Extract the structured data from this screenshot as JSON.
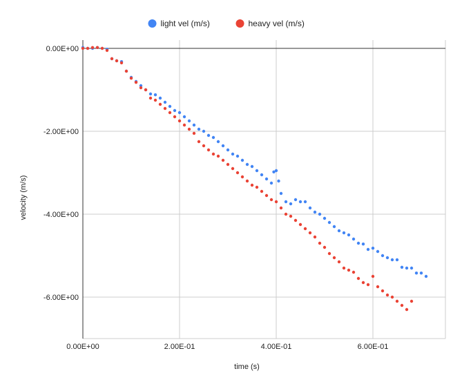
{
  "chart_data": {
    "type": "scatter",
    "title": "",
    "xlabel": "time (s)",
    "ylabel": "velocity (m/s)",
    "xlim": [
      0,
      0.75
    ],
    "ylim": [
      -7,
      0.2
    ],
    "x_ticks": [
      0,
      0.2,
      0.4,
      0.6
    ],
    "x_tick_labels": [
      "0.00E+00",
      "2.00E-01",
      "4.00E-01",
      "6.00E-01"
    ],
    "y_ticks": [
      0,
      -2,
      -4,
      -6
    ],
    "y_tick_labels": [
      "0.00E+00",
      "-2.00E+00",
      "-4.00E+00",
      "-6.00E+00"
    ],
    "grid": true,
    "legend_position": "top",
    "series": [
      {
        "name": "light vel (m/s)",
        "color": "#4285f4",
        "x": [
          0.0,
          0.01,
          0.02,
          0.03,
          0.04,
          0.05,
          0.06,
          0.07,
          0.08,
          0.09,
          0.1,
          0.11,
          0.12,
          0.13,
          0.14,
          0.15,
          0.16,
          0.17,
          0.18,
          0.19,
          0.2,
          0.21,
          0.22,
          0.23,
          0.24,
          0.25,
          0.26,
          0.27,
          0.28,
          0.29,
          0.3,
          0.31,
          0.32,
          0.33,
          0.34,
          0.35,
          0.36,
          0.37,
          0.38,
          0.39,
          0.395,
          0.4,
          0.405,
          0.41,
          0.42,
          0.43,
          0.44,
          0.45,
          0.46,
          0.47,
          0.48,
          0.49,
          0.5,
          0.51,
          0.52,
          0.53,
          0.54,
          0.55,
          0.56,
          0.57,
          0.58,
          0.59,
          0.6,
          0.61,
          0.62,
          0.63,
          0.64,
          0.65,
          0.66,
          0.67,
          0.68,
          0.69,
          0.7,
          0.71
        ],
        "y": [
          0.02,
          0.0,
          0.0,
          0.02,
          0.0,
          -0.02,
          -0.25,
          -0.3,
          -0.32,
          -0.55,
          -0.7,
          -0.8,
          -0.9,
          -1.0,
          -1.1,
          -1.12,
          -1.2,
          -1.3,
          -1.4,
          -1.5,
          -1.55,
          -1.65,
          -1.75,
          -1.85,
          -1.95,
          -2.0,
          -2.1,
          -2.15,
          -2.25,
          -2.35,
          -2.45,
          -2.55,
          -2.6,
          -2.7,
          -2.8,
          -2.85,
          -2.95,
          -3.05,
          -3.15,
          -3.25,
          -2.98,
          -2.95,
          -3.2,
          -3.5,
          -3.7,
          -3.75,
          -3.65,
          -3.7,
          -3.7,
          -3.85,
          -3.95,
          -4.0,
          -4.1,
          -4.2,
          -4.3,
          -4.4,
          -4.45,
          -4.5,
          -4.6,
          -4.7,
          -4.72,
          -4.85,
          -4.82,
          -4.9,
          -5.0,
          -5.05,
          -5.1,
          -5.1,
          -5.28,
          -5.3,
          -5.3,
          -5.42,
          -5.42,
          -5.5
        ]
      },
      {
        "name": "heavy vel (m/s)",
        "color": "#ea4335",
        "x": [
          0.0,
          0.01,
          0.02,
          0.03,
          0.04,
          0.05,
          0.06,
          0.07,
          0.08,
          0.09,
          0.1,
          0.11,
          0.12,
          0.13,
          0.14,
          0.15,
          0.16,
          0.17,
          0.18,
          0.19,
          0.2,
          0.21,
          0.22,
          0.23,
          0.24,
          0.25,
          0.26,
          0.27,
          0.28,
          0.29,
          0.3,
          0.31,
          0.32,
          0.33,
          0.34,
          0.35,
          0.36,
          0.37,
          0.38,
          0.39,
          0.4,
          0.41,
          0.42,
          0.43,
          0.44,
          0.45,
          0.46,
          0.47,
          0.48,
          0.49,
          0.5,
          0.51,
          0.52,
          0.53,
          0.54,
          0.55,
          0.56,
          0.57,
          0.58,
          0.59,
          0.6,
          0.61,
          0.62,
          0.63,
          0.64,
          0.65,
          0.66,
          0.67,
          0.68
        ],
        "y": [
          0.0,
          0.0,
          0.02,
          0.02,
          0.0,
          -0.05,
          -0.25,
          -0.3,
          -0.35,
          -0.55,
          -0.72,
          -0.82,
          -0.95,
          -1.0,
          -1.2,
          -1.25,
          -1.35,
          -1.45,
          -1.55,
          -1.65,
          -1.75,
          -1.85,
          -1.95,
          -2.05,
          -2.25,
          -2.35,
          -2.45,
          -2.55,
          -2.6,
          -2.7,
          -2.8,
          -2.9,
          -3.0,
          -3.1,
          -3.2,
          -3.3,
          -3.35,
          -3.45,
          -3.55,
          -3.65,
          -3.7,
          -3.85,
          -4.0,
          -4.05,
          -4.15,
          -4.25,
          -4.35,
          -4.45,
          -4.55,
          -4.7,
          -4.8,
          -4.95,
          -5.05,
          -5.15,
          -5.3,
          -5.35,
          -5.4,
          -5.55,
          -5.65,
          -5.7,
          -5.5,
          -5.75,
          -5.85,
          -5.95,
          -6.0,
          -6.1,
          -6.2,
          -6.3,
          -6.1
        ]
      }
    ]
  }
}
